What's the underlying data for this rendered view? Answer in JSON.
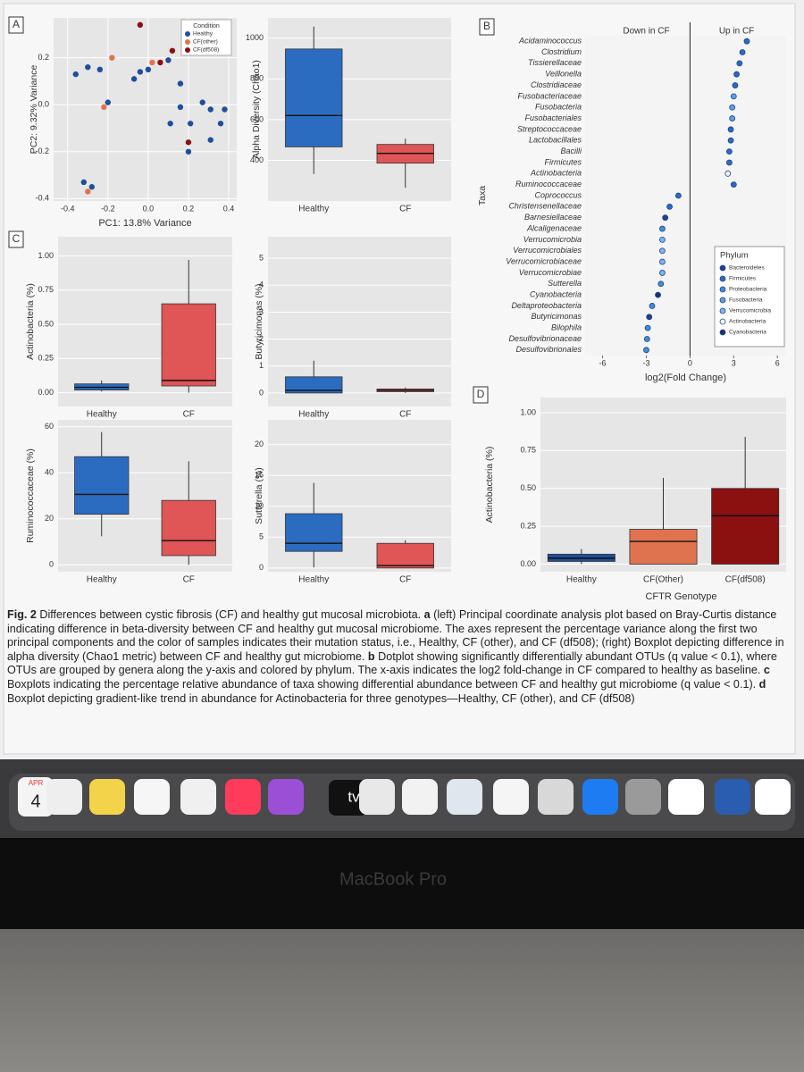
{
  "chart_data": [
    {
      "type": "scatter",
      "panel": "A",
      "xlabel": "PC1: 13.8% Variance",
      "ylabel": "PC2: 9.32% Variance",
      "xlim": [
        -0.47,
        0.44
      ],
      "ylim": [
        -0.41,
        0.37
      ],
      "xticks": [
        -0.4,
        -0.2,
        {
          "value": 0,
          "label": "0.0"
        },
        0.2,
        0.4
      ],
      "yticks": [
        -0.4,
        -0.2,
        {
          "value": 0,
          "label": "0.0"
        },
        0.2
      ],
      "grid": true,
      "legend": "upper right",
      "legend_title": "Condition",
      "series": [
        {
          "name": "Healthy",
          "color": "#1f4e9c",
          "x": [
            -0.36,
            -0.3,
            -0.24,
            -0.07,
            -0.04,
            0.0,
            0.1,
            0.16,
            -0.2,
            0.16,
            0.27,
            0.31,
            0.21,
            0.38,
            0.36,
            0.11,
            0.31,
            0.2,
            -0.32,
            -0.28
          ],
          "y": [
            0.13,
            0.16,
            0.15,
            0.11,
            0.14,
            0.15,
            0.19,
            0.09,
            0.01,
            -0.01,
            0.01,
            -0.02,
            -0.08,
            -0.02,
            -0.08,
            -0.08,
            -0.15,
            -0.2,
            -0.33,
            -0.35
          ]
        },
        {
          "name": "CF(other)",
          "color": "#e0734f",
          "x": [
            -0.18,
            0.02,
            -0.22,
            -0.3
          ],
          "y": [
            0.2,
            0.18,
            -0.01,
            -0.37
          ]
        },
        {
          "name": "CF(df508)",
          "color": "#8b1010",
          "x": [
            0.12,
            0.06,
            0.2,
            -0.04
          ],
          "y": [
            0.23,
            0.18,
            -0.16,
            0.34
          ]
        }
      ]
    },
    {
      "type": "box",
      "ylabel": "Alpha Diversity (Chao1)",
      "categories": [
        "Healthy",
        "CF"
      ],
      "colors": [
        "#2b6cc0",
        "#e05555"
      ],
      "ylim": [
        200,
        1100
      ],
      "yticks": [
        400,
        600,
        800,
        1000
      ],
      "grid": true,
      "boxes": [
        {
          "min": 333,
          "q1": 466,
          "median": 620,
          "q3": 947,
          "max": 1057
        },
        {
          "min": 265,
          "q1": 386,
          "median": 434,
          "q3": 478,
          "max": 506
        }
      ]
    },
    {
      "type": "dot",
      "panel": "B",
      "ylabel": "Taxa",
      "xlabel": "log2(Fold Change)",
      "left_header": "Down in CF",
      "right_header": "Up in CF",
      "xlim": [
        -7.2,
        6.6
      ],
      "xticks": [
        -6,
        -3,
        0,
        3,
        6
      ],
      "categories": [
        "Acidaminococcus",
        "Clostridium",
        "Tissierellaceae",
        "Veillonella",
        "Clostridiaceae",
        "Fusobacteriaceae",
        "Fusobacteria",
        "Fusobacteriales",
        "Streptococcaceae",
        "Lactobacillales",
        "Bacilli",
        "Firmicutes",
        "Actinobacteria",
        "Ruminococcaceae",
        "Coprococcus",
        "Christensenellaceae",
        "Barnesiellaceae",
        "Alcaligenaceae",
        "Verrucomicrobia",
        "Verrucomicrobiales",
        "Verrucomicrobiaceae",
        "Verrucomicrobiae",
        "Sutterella",
        "Cyanobacteria",
        "Deltaproteobacteria",
        "Butyricimonas",
        "Bilophila",
        "Desulfovibrionaceae",
        "Desulfovibrionales"
      ],
      "values": [
        3.9,
        3.6,
        3.4,
        3.2,
        3.1,
        3.0,
        2.9,
        2.9,
        2.8,
        2.8,
        2.7,
        2.7,
        2.6,
        3.0,
        -0.8,
        -1.4,
        -1.7,
        -1.9,
        -1.9,
        -1.9,
        -1.9,
        -1.9,
        -2.0,
        -2.2,
        -2.6,
        -2.8,
        -2.9,
        -2.95,
        -3.0
      ],
      "point_colors": [
        "#2a6cc0",
        "#2a6cc0",
        "#2a6cc0",
        "#2a6cc0",
        "#2a6cc0",
        "#5aa0e0",
        "#5aa0e0",
        "#5aa0e0",
        "#2a6cc0",
        "#2a6cc0",
        "#2a6cc0",
        "#2a6cc0",
        "#ffffff",
        "#2a6cc0",
        "#2a6cc0",
        "#2a6cc0",
        "#1f3f8f",
        "#3d8fd8",
        "#7fb5e8",
        "#7fb5e8",
        "#7fb5e8",
        "#7fb5e8",
        "#3d8fd8",
        "#173570",
        "#3d8fd8",
        "#1f3f8f",
        "#3d8fd8",
        "#3d8fd8",
        "#3d8fd8"
      ],
      "legend_title": "Phylum",
      "legend": [
        {
          "name": "Bacteroidetes",
          "color": "#1f3f8f"
        },
        {
          "name": "Firmicutes",
          "color": "#2a6cc0"
        },
        {
          "name": "Proteobacteria",
          "color": "#3d8fd8"
        },
        {
          "name": "Fusobacteria",
          "color": "#5aa0e0"
        },
        {
          "name": "Verrucomicrobia",
          "color": "#7fb5e8"
        },
        {
          "name": "Actinobacteria",
          "color": "#ffffff"
        },
        {
          "name": "Cyanobacteria",
          "color": "#173570"
        }
      ]
    },
    {
      "type": "box",
      "panel": "C",
      "ylabel": "Actinobacteria (%)",
      "categories": [
        "Healthy",
        "CF"
      ],
      "colors": [
        "#2b6cc0",
        "#e05555"
      ],
      "ylim": [
        -0.1,
        1.14
      ],
      "yticks": [
        {
          "value": 0,
          "label": "0.00"
        },
        0.25,
        {
          "value": 0.5,
          "label": "0.50"
        },
        0.75,
        {
          "value": 1,
          "label": "1.00"
        }
      ],
      "grid": true,
      "boxes": [
        {
          "min": 0.01,
          "q1": 0.02,
          "median": 0.04,
          "q3": 0.065,
          "max": 0.09
        },
        {
          "min": 0.0,
          "q1": 0.05,
          "median": 0.09,
          "q3": 0.65,
          "max": 0.97
        }
      ]
    },
    {
      "type": "box",
      "ylabel": "Butyricimonas (%)",
      "categories": [
        "Healthy",
        "CF"
      ],
      "colors": [
        "#2b6cc0",
        "#e05555"
      ],
      "ylim": [
        -0.5,
        5.8
      ],
      "yticks": [
        0,
        1,
        2,
        3,
        4,
        5
      ],
      "grid": true,
      "boxes": [
        {
          "min": 0,
          "q1": 0,
          "median": 0.1,
          "q3": 0.6,
          "max": 1.2
        },
        {
          "min": 0,
          "q1": 0.05,
          "median": 0.1,
          "q3": 0.15,
          "max": 0.2
        }
      ]
    },
    {
      "type": "box",
      "ylabel": "Ruminococcaceae (%)",
      "categories": [
        "Healthy",
        "CF"
      ],
      "colors": [
        "#2b6cc0",
        "#e05555"
      ],
      "ylim": [
        -3,
        63
      ],
      "yticks": [
        0,
        20,
        40,
        60
      ],
      "grid": true,
      "boxes": [
        {
          "min": 12.4,
          "q1": 22,
          "median": 30.6,
          "q3": 47,
          "max": 57.7
        },
        {
          "min": 0,
          "q1": 4,
          "median": 10.5,
          "q3": 28,
          "max": 45
        }
      ]
    },
    {
      "type": "box",
      "ylabel": "Sutterella (%)",
      "categories": [
        "Healthy",
        "CF"
      ],
      "colors": [
        "#2b6cc0",
        "#e05555"
      ],
      "ylim": [
        -0.6,
        24
      ],
      "yticks": [
        0,
        5,
        10,
        15,
        20
      ],
      "grid": true,
      "boxes": [
        {
          "min": 0.1,
          "q1": 2.7,
          "median": 4,
          "q3": 8.8,
          "max": 13.8
        },
        {
          "min": 0,
          "q1": 0,
          "median": 0.4,
          "q3": 4,
          "max": 4.5
        }
      ]
    },
    {
      "type": "box",
      "panel": "D",
      "ylabel": "Actinobacteria (%)",
      "xlabel": "CFTR Genotype",
      "categories": [
        "Healthy",
        "CF(Other)",
        "CF(df508)"
      ],
      "colors": [
        "#1f4e9c",
        "#e0734f",
        "#8b1010"
      ],
      "ylim": [
        -0.05,
        1.1
      ],
      "yticks": [
        {
          "value": 0,
          "label": "0.00"
        },
        0.25,
        {
          "value": 0.5,
          "label": "0.50"
        },
        0.75,
        {
          "value": 1,
          "label": "1.00"
        }
      ],
      "grid": true,
      "boxes": [
        {
          "min": 0.0,
          "q1": 0.018,
          "median": 0.04,
          "q3": 0.066,
          "max": 0.1
        },
        {
          "min": 0.0,
          "q1": 0.0,
          "median": 0.15,
          "q3": 0.23,
          "max": 0.57
        },
        {
          "min": 0.0,
          "q1": 0.0,
          "median": 0.32,
          "q3": 0.5,
          "max": 0.84
        }
      ]
    }
  ],
  "caption": [
    {
      "text": "Fig. 2",
      "bold": true
    },
    {
      "text": " Differences between cystic fibrosis (CF) and healthy gut mucosal microbiota. ",
      "bold": false
    },
    {
      "text": "a",
      "bold": true
    },
    {
      "text": " (left) Principal coordinate analysis plot based on Bray-Curtis distance indicating difference in beta-diversity between CF and healthy gut mucosal microbiome. The axes represent the percentage variance along the first two principal components and the color of samples indicates their mutation status, i.e., Healthy, CF (other), and CF (df508); (right) Boxplot depicting difference in alpha diversity (Chao1 metric) between CF and healthy gut microbiome. ",
      "bold": false
    },
    {
      "text": "b",
      "bold": true
    },
    {
      "text": " Dotplot showing significantly differentially abundant OTUs (q value < 0.1), where OTUs are grouped by genera along the y-axis and colored by phylum. The x-axis indicates the log2 fold-change in CF compared to healthy as baseline. ",
      "bold": false
    },
    {
      "text": "c",
      "bold": true
    },
    {
      "text": " Boxplots indicating the percentage relative abundance of taxa showing differential abundance between CF and healthy gut microbiome (q value < 0.1). ",
      "bold": false
    },
    {
      "text": "d",
      "bold": true
    },
    {
      "text": " Boxplot depicting gradient-like trend in abundance for Actinobacteria for three genotypes—Healthy, CF (other), and CF (df508)",
      "bold": false
    }
  ],
  "dock": {
    "month": "APR",
    "day": "4",
    "tv": "tv"
  },
  "device_label": "MacBook Pro"
}
